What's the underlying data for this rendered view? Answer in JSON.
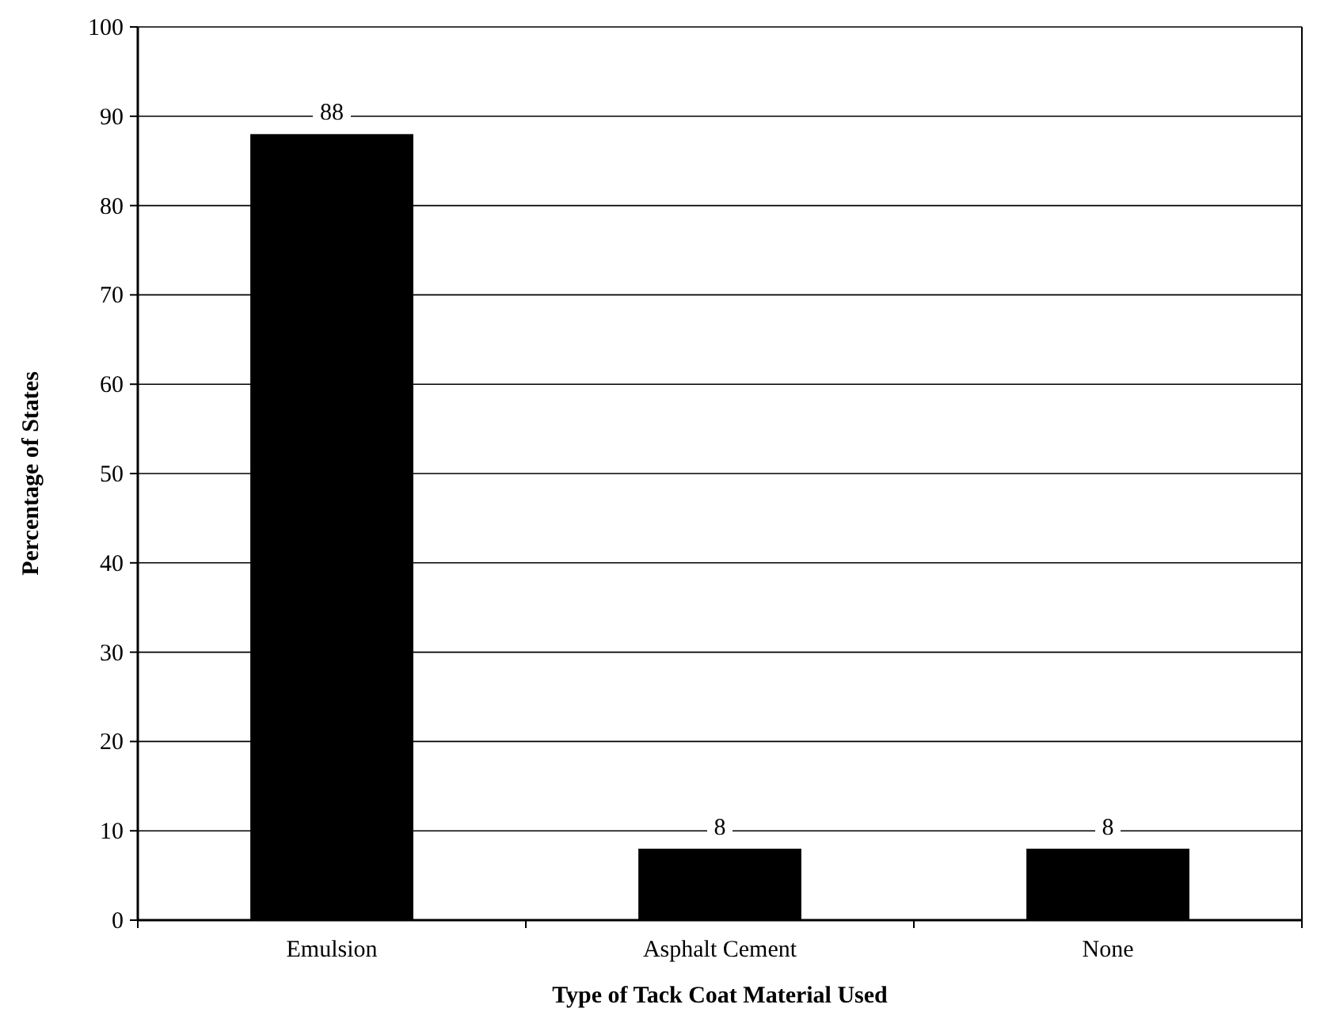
{
  "chart_data": {
    "type": "bar",
    "xlabel": "Type of Tack Coat Material Used",
    "ylabel": "Percentage of States",
    "categories": [
      "Emulsion",
      "Asphalt Cement",
      "None"
    ],
    "values": [
      88,
      8,
      8
    ],
    "color": "#000000",
    "ylim": [
      0,
      100
    ],
    "yticks": [
      0,
      10,
      20,
      30,
      40,
      50,
      60,
      70,
      80,
      90,
      100
    ],
    "grid": "y",
    "data_labels": true
  }
}
